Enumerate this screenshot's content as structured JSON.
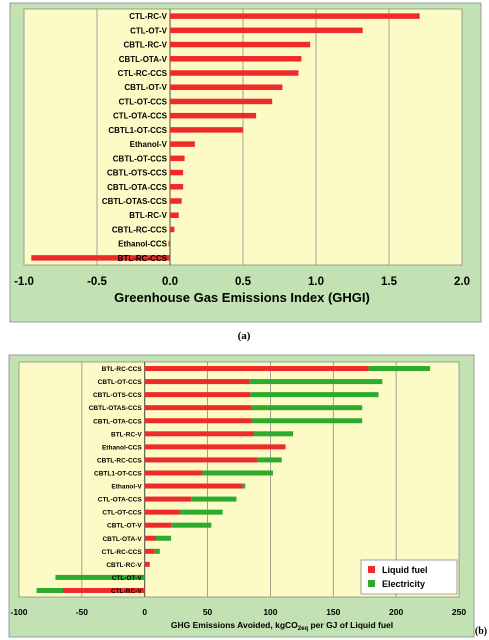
{
  "chart_data": [
    {
      "type": "bar",
      "orientation": "horizontal",
      "panel_label": "(a)",
      "xlabel": "Greenhouse Gas Emissions Index (GHGI)",
      "xlim": [
        -1.0,
        2.0
      ],
      "xticks": [
        "-1.0",
        "-0.5",
        "0.0",
        "0.5",
        "1.0",
        "1.5",
        "2.0"
      ],
      "grid": "vertical",
      "colors": {
        "bar": "#ee2b2b",
        "plot_bg": "#fdfbc5",
        "frame_bg": "#c2e2b3"
      },
      "categories": [
        "CTL-RC-V",
        "CTL-OT-V",
        "CBTL-RC-V",
        "CBTL-OTA-V",
        "CTL-RC-CCS",
        "CBTL-OT-V",
        "CTL-OT-CCS",
        "CTL-OTA-CCS",
        "CBTL1-OT-CCS",
        "Ethanol-V",
        "CBTL-OT-CCS",
        "CBTL-OTS-CCS",
        "CBTL-OTA-CCS",
        "CBTL-OTAS-CCS",
        "BTL-RC-V",
        "CBTL-RC-CCS",
        "Ethanol-CCS",
        "BTL-RC-CCS"
      ],
      "values": [
        1.71,
        1.32,
        0.96,
        0.9,
        0.88,
        0.77,
        0.7,
        0.59,
        0.5,
        0.17,
        0.1,
        0.09,
        0.09,
        0.08,
        0.06,
        0.03,
        -0.01,
        -0.95
      ]
    },
    {
      "type": "bar",
      "orientation": "horizontal",
      "stacked": true,
      "panel_label": "(b)",
      "xlabel_main": "GHG Emissions  Avoided, kgCO",
      "xlabel_sub": "2eq",
      "xlabel_rest": " per GJ of  Liquid fuel",
      "xlim": [
        -100,
        250
      ],
      "xticks": [
        "-100",
        "-50",
        "0",
        "50",
        "100",
        "150",
        "200",
        "250"
      ],
      "grid": "vertical",
      "legend_position": "bottom-right",
      "colors": {
        "plot_bg": "#fdfbc5",
        "frame_bg": "#c2e2b3"
      },
      "categories": [
        "BTL-RC-CCS",
        "CBTL-OT-CCS",
        "CBTL-OTS-CCS",
        "CBTL-OTAS-CCS",
        "CBTL-OTA-CCS",
        "BTL-RC-V",
        "Ethanol-CCS",
        "CBTL-RC-CCS",
        "CBTL1-OT-CCS",
        "Ethanol-V",
        "CTL-OTA-CCS",
        "CTL-OT-CCS",
        "CBTL-OT-V",
        "CBTL-OTA-V",
        "CTL-RC-CCS",
        "CBTL-RC-V",
        "CTL-OT-V",
        "CTL-RC-V"
      ],
      "series": [
        {
          "name": "Liquid fuel",
          "color": "#ee2b2b",
          "values": [
            178,
            83,
            84,
            85,
            85,
            87,
            112,
            90,
            46,
            78,
            37,
            28,
            21,
            9,
            8,
            4,
            0,
            -65
          ]
        },
        {
          "name": "Electricity",
          "color": "#2eaa2e",
          "values": [
            49,
            106,
            102,
            88,
            88,
            31,
            0,
            19,
            56,
            2,
            36,
            34,
            32,
            12,
            4,
            0,
            -71,
            -21
          ]
        }
      ]
    }
  ]
}
